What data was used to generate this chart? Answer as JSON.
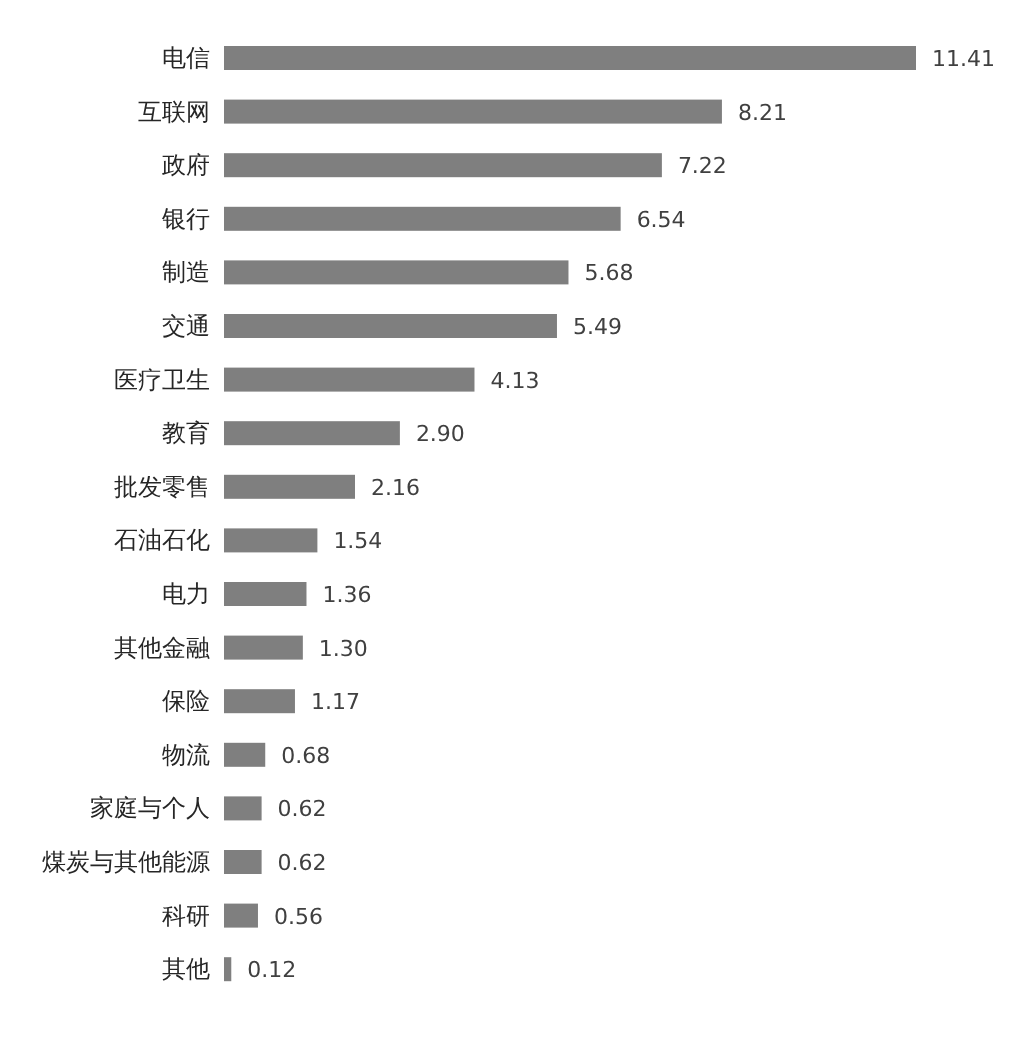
{
  "chart_data": {
    "type": "bar",
    "orientation": "horizontal",
    "color": "#7f7f7f",
    "categories": [
      "电信",
      "互联网",
      "政府",
      "银行",
      "制造",
      "交通",
      "医疗卫生",
      "教育",
      "批发零售",
      "石油石化",
      "电力",
      "其他金融",
      "保险",
      "物流",
      "家庭与个人",
      "煤炭与其他能源",
      "科研",
      "其他"
    ],
    "values": [
      11.41,
      8.21,
      7.22,
      6.54,
      5.68,
      5.49,
      4.13,
      2.9,
      2.16,
      1.54,
      1.36,
      1.3,
      1.17,
      0.68,
      0.62,
      0.62,
      0.56,
      0.12
    ],
    "value_labels": [
      "11.41",
      "8.21",
      "7.22",
      "6.54",
      "5.68",
      "5.49",
      "4.13",
      "2.90",
      "2.16",
      "1.54",
      "1.36",
      "1.30",
      "1.17",
      "0.68",
      "0.62",
      "0.62",
      "0.56",
      "0.12"
    ]
  }
}
